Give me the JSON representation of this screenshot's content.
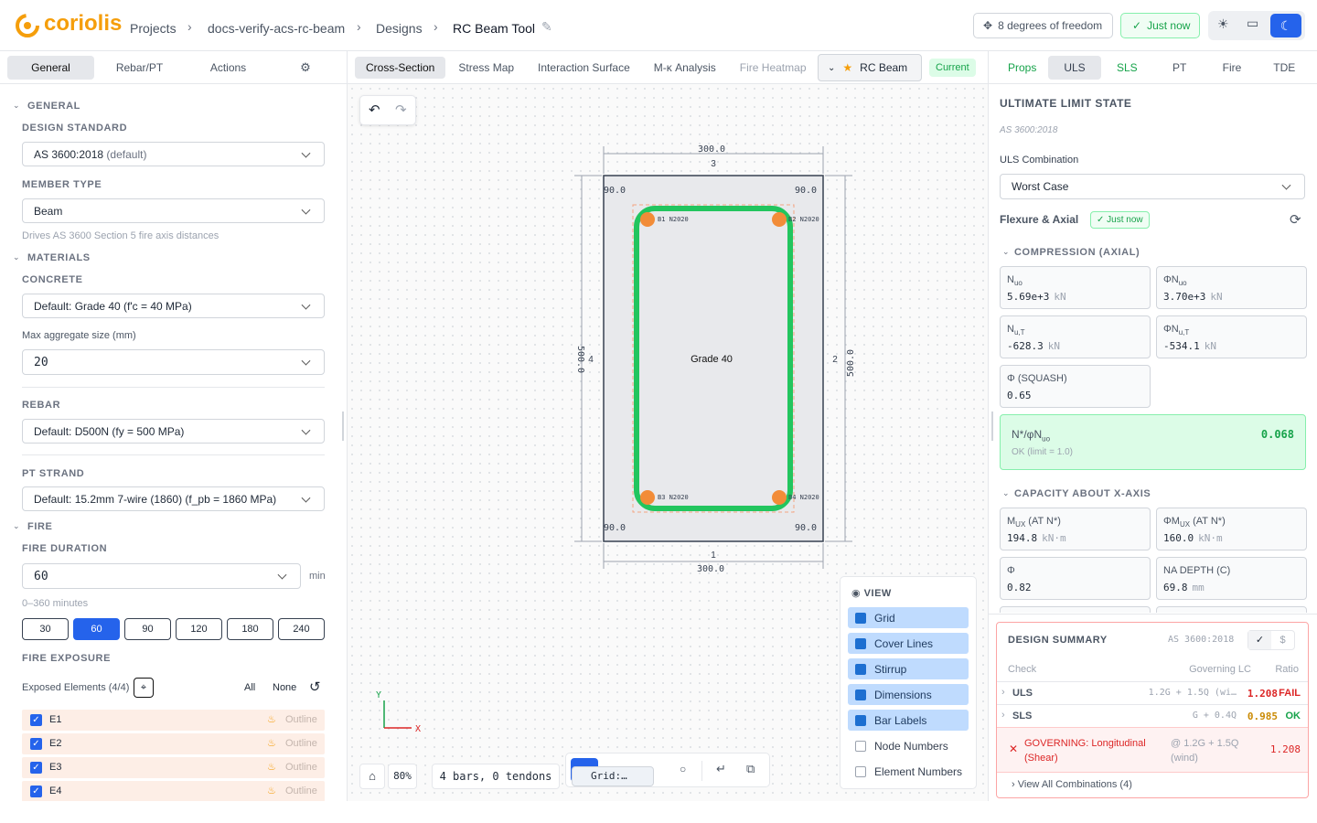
{
  "header": {
    "logo": "coriolis",
    "breadcrumb": [
      "Projects",
      "docs-verify-acs-rc-beam",
      "Designs",
      "RC Beam Tool"
    ],
    "dof": "8 degrees of freedom",
    "status": "Just now"
  },
  "left": {
    "tabs": [
      "General",
      "Rebar/PT",
      "Actions"
    ],
    "general": {
      "heading": "GENERAL",
      "standard_label": "DESIGN STANDARD",
      "standard": "AS 3600:2018",
      "standard_note": "(default)",
      "member_label": "MEMBER TYPE",
      "member": "Beam",
      "member_hint": "Drives AS 3600 Section 5 fire axis distances"
    },
    "materials": {
      "heading": "MATERIALS",
      "concrete_label": "CONCRETE",
      "concrete": "Default: Grade 40 (f'c = 40 MPa)",
      "aggregate_label": "Max aggregate size (mm)",
      "aggregate": "20",
      "rebar_label": "REBAR",
      "rebar": "Default: D500N (fy = 500 MPa)",
      "pt_label": "PT STRAND",
      "pt": "Default: 15.2mm 7-wire (1860) (f_pb = 1860 MPa)"
    },
    "fire": {
      "heading": "FIRE",
      "duration_label": "FIRE DURATION",
      "duration": "60",
      "unit": "min",
      "range": "0–360 minutes",
      "options": [
        "30",
        "60",
        "90",
        "120",
        "180",
        "240"
      ],
      "exposure_label": "FIRE EXPOSURE",
      "exposed": "Exposed Elements (4/4)",
      "all": "All",
      "none": "None",
      "elements": [
        {
          "name": "E1",
          "mode": "Outline"
        },
        {
          "name": "E2",
          "mode": "Outline"
        },
        {
          "name": "E3",
          "mode": "Outline"
        },
        {
          "name": "E4",
          "mode": "Outline"
        }
      ]
    }
  },
  "center": {
    "tabs": [
      "Cross-Section",
      "Stress Map",
      "Interaction Surface",
      "M-κ Analysis",
      "Fire Heatmap"
    ],
    "design": "RC Beam",
    "design_status": "Current",
    "section": {
      "top_dim": "300.0",
      "top_edge": "3",
      "bottom_dim": "300.0",
      "bottom_edge": "1",
      "left_dim": "500.0",
      "left_edge": "4",
      "right_dim": "500.0",
      "right_edge": "2",
      "covers": [
        "90.0",
        "90.0",
        "90.0",
        "90.0"
      ],
      "material": "Grade 40",
      "bars": [
        "B1 N2020",
        "B2 N2020",
        "B3 N2020",
        "B4 N2020"
      ],
      "axis_x": "X",
      "axis_y": "Y"
    },
    "view": {
      "title": "VIEW",
      "options": [
        {
          "label": "Grid",
          "checked": true
        },
        {
          "label": "Cover Lines",
          "checked": true
        },
        {
          "label": "Stirrup",
          "checked": true
        },
        {
          "label": "Dimensions",
          "checked": true
        },
        {
          "label": "Bar Labels",
          "checked": true
        },
        {
          "label": "Node Numbers",
          "checked": false
        },
        {
          "label": "Element Numbers",
          "checked": false
        }
      ]
    },
    "toolbar": {
      "zoom": "80%",
      "summary": "4 bars, 0 tendons",
      "grid": "Grid:…"
    }
  },
  "right": {
    "tabs": [
      "Props",
      "ULS",
      "SLS",
      "PT",
      "Fire",
      "TDE"
    ],
    "title": "ULTIMATE LIMIT STATE",
    "standard": "AS 3600:2018",
    "combo_label": "ULS Combination",
    "combo": "Worst Case",
    "flexure": "Flexure & Axial",
    "flexure_status": "Just now",
    "compression": {
      "heading": "COMPRESSION (AXIAL)",
      "cards": [
        {
          "symbol": "N",
          "sub": "uo",
          "value": "5.69e+3",
          "unit": "kN"
        },
        {
          "symbol": "ΦN",
          "sub": "uo",
          "value": "3.70e+3",
          "unit": "kN"
        },
        {
          "symbol": "N",
          "sub": "u,T",
          "value": "-628.3",
          "unit": "kN"
        },
        {
          "symbol": "ΦN",
          "sub": "u,T",
          "value": "-534.1",
          "unit": "kN"
        },
        {
          "symbol": "Φ (SQUASH)",
          "value": "0.65"
        }
      ],
      "ratio": {
        "symbol": "N*/φN",
        "sub": "uo",
        "value": "0.068",
        "note": "OK (limit = 1.0)"
      }
    },
    "capacity": {
      "heading": "CAPACITY ABOUT X-AXIS",
      "cards": [
        {
          "symbol": "M",
          "sub": "UX",
          "suffix": "(AT N*)",
          "value": "194.8",
          "unit": "kN·m"
        },
        {
          "symbol": "ΦM",
          "sub": "UX",
          "suffix": "(AT N*)",
          "value": "160.0",
          "unit": "kN·m"
        },
        {
          "symbol": "Φ",
          "value": "0.82"
        },
        {
          "symbol": "NA DEPTH (C)",
          "value": "69.8",
          "unit": "mm"
        }
      ]
    },
    "summary": {
      "title": "DESIGN SUMMARY",
      "standard": "AS 3600:2018",
      "columns": [
        "Check",
        "Governing LC",
        "Ratio"
      ],
      "rows": [
        {
          "check": "ULS",
          "lc": "1.2G + 1.5Q (wi…",
          "ratio": "1.208",
          "status": "FAIL"
        },
        {
          "check": "SLS",
          "lc": "G + 0.4Q",
          "ratio": "0.985",
          "status": "OK"
        }
      ],
      "governing": {
        "text": "GOVERNING: Longitudinal (Shear)",
        "lc": "@ 1.2G + 1.5Q (wind)",
        "ratio": "1.208"
      },
      "link": "View All Combinations (4)"
    }
  }
}
